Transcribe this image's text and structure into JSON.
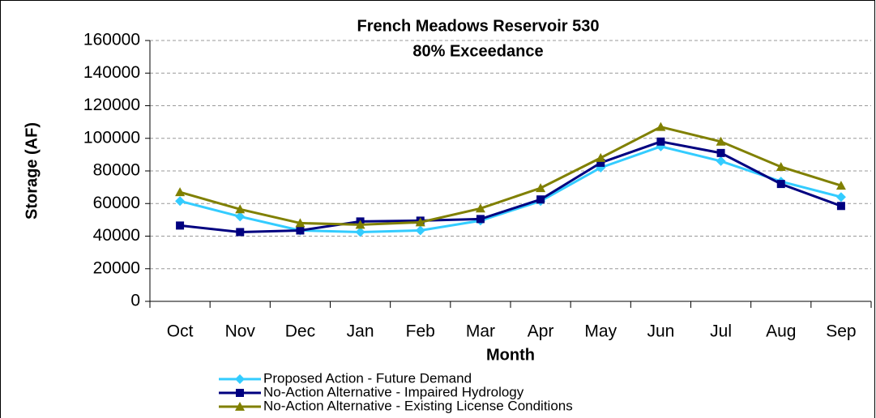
{
  "chart_data": {
    "type": "line",
    "title": "French Meadows Reservoir 530",
    "subtitle": "80% Exceedance",
    "x_label": "Month",
    "y_label": "Storage (AF)",
    "categories": [
      "Oct",
      "Nov",
      "Dec",
      "Jan",
      "Feb",
      "Mar",
      "Apr",
      "May",
      "Jun",
      "Jul",
      "Aug",
      "Sep"
    ],
    "series": [
      {
        "name": "Proposed Action - Future Demand",
        "color": "#33ccff",
        "marker": "diamond",
        "values": [
          61500,
          52000,
          43500,
          42500,
          43500,
          49500,
          61500,
          82000,
          95000,
          86000,
          73500,
          64000
        ]
      },
      {
        "name": "No-Action Alternative - Impaired Hydrology",
        "color": "#000080",
        "marker": "square",
        "values": [
          46500,
          42500,
          43500,
          49000,
          49500,
          50500,
          62500,
          85000,
          98000,
          91000,
          72000,
          58500
        ]
      },
      {
        "name": "No-Action Alternative - Existing License Conditions",
        "color": "#808000",
        "marker": "triangle",
        "values": [
          67000,
          56500,
          48000,
          47000,
          48500,
          57000,
          69500,
          88000,
          107000,
          98000,
          82500,
          71000
        ]
      }
    ],
    "ylim": [
      0,
      160000
    ],
    "yticks": [
      0,
      20000,
      40000,
      60000,
      80000,
      100000,
      120000,
      140000,
      160000
    ],
    "grid": true,
    "legend": "bottom"
  }
}
